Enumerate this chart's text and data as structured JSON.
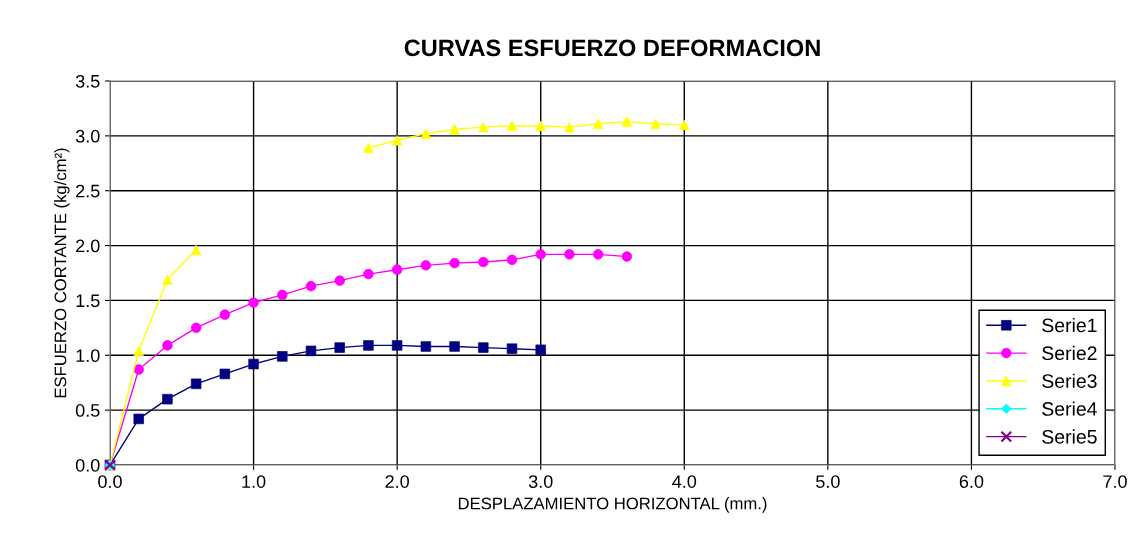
{
  "chart_data": {
    "type": "line",
    "title": "CURVAS ESFUERZO DEFORMACION",
    "xlabel": "DESPLAZAMIENTO HORIZONTAL (mm.)",
    "ylabel": "ESFUERZO CORTANTE (kg/cm²)",
    "xlim": [
      0,
      7
    ],
    "xticks": [
      {
        "value": 0,
        "label": "0.0"
      },
      {
        "value": 1,
        "label": "1.0"
      },
      {
        "value": 2,
        "label": "2.0"
      },
      {
        "value": 3,
        "label": "3.0"
      },
      {
        "value": 4,
        "label": "4.0"
      },
      {
        "value": 5,
        "label": "5.0"
      },
      {
        "value": 6,
        "label": "6.0"
      },
      {
        "value": 7,
        "label": "7.0"
      }
    ],
    "ylim": [
      0,
      3.5
    ],
    "yticks": [
      {
        "value": 0,
        "label": "0.0"
      },
      0.5,
      {
        "value": 1,
        "label": "1.0"
      },
      1.5,
      {
        "value": 2,
        "label": "2.0"
      },
      2.5,
      {
        "value": 3,
        "label": "3.0"
      },
      3.5
    ],
    "grid": true,
    "legend": "bottom right",
    "series": [
      {
        "name": "Serie1",
        "color": "#000080",
        "marker": "square",
        "x": [
          0,
          0.2,
          0.4,
          0.6,
          0.8,
          1.0,
          1.2,
          1.4,
          1.6,
          1.8,
          2.0,
          2.2,
          2.4,
          2.6,
          2.8,
          3.0
        ],
        "values": [
          0,
          0.42,
          0.6,
          0.74,
          0.83,
          0.92,
          0.99,
          1.04,
          1.07,
          1.09,
          1.09,
          1.08,
          1.08,
          1.07,
          1.06,
          1.05
        ]
      },
      {
        "name": "Serie2",
        "color": "#ff00ff",
        "marker": "circle",
        "x": [
          0,
          0.2,
          0.4,
          0.6,
          0.8,
          1.0,
          1.2,
          1.4,
          1.6,
          1.8,
          2.0,
          2.2,
          2.4,
          2.6,
          2.8,
          3.0,
          3.2,
          3.4,
          3.6
        ],
        "values": [
          0,
          0.87,
          1.09,
          1.25,
          1.37,
          1.48,
          1.55,
          1.63,
          1.68,
          1.74,
          1.78,
          1.82,
          1.84,
          1.85,
          1.87,
          1.92,
          1.92,
          1.92,
          1.9
        ]
      },
      {
        "name": "Serie3",
        "color": "#ffff00",
        "marker": "triangle",
        "x": [
          0,
          0.2,
          0.4,
          0.6,
          0.8,
          1.0,
          1.2,
          1.4,
          1.6,
          1.8,
          2.0,
          2.2,
          2.4,
          2.6,
          2.8,
          3.0,
          3.2,
          3.4,
          3.6,
          3.8,
          4.0
        ],
        "values": [
          0,
          1.04,
          1.69,
          1.96,
          null,
          null,
          null,
          null,
          null,
          2.89,
          2.96,
          3.02,
          3.06,
          3.08,
          3.09,
          3.09,
          3.08,
          3.11,
          3.13,
          3.11,
          3.1
        ]
      },
      {
        "name": "Serie4",
        "color": "#00ffff",
        "marker": "diamond",
        "x": [
          0
        ],
        "values": [
          0
        ]
      },
      {
        "name": "Serie5",
        "color": "#800080",
        "marker": "cross",
        "x": [
          0
        ],
        "values": [
          0
        ]
      }
    ]
  }
}
